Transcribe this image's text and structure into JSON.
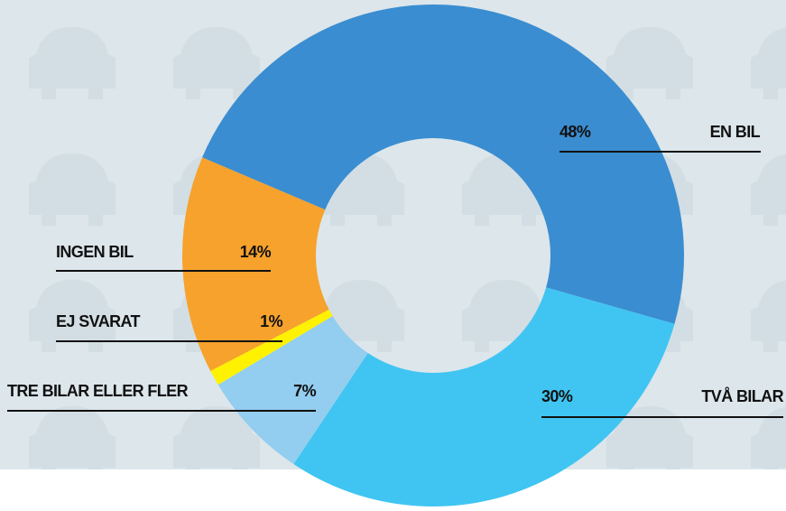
{
  "chart_data": {
    "type": "donut",
    "categories": [
      "EN BIL",
      "TVÅ BILAR",
      "TRE BILAR ELLER FLER",
      "EJ SVARAT",
      "INGEN BIL"
    ],
    "values": [
      48,
      30,
      7,
      1,
      14
    ],
    "value_labels": [
      "48%",
      "30%",
      "7%",
      "1%",
      "14%"
    ],
    "colors": [
      "#3a8dd0",
      "#40c5f2",
      "#93cdef",
      "#fff200",
      "#f6a22c"
    ]
  }
}
